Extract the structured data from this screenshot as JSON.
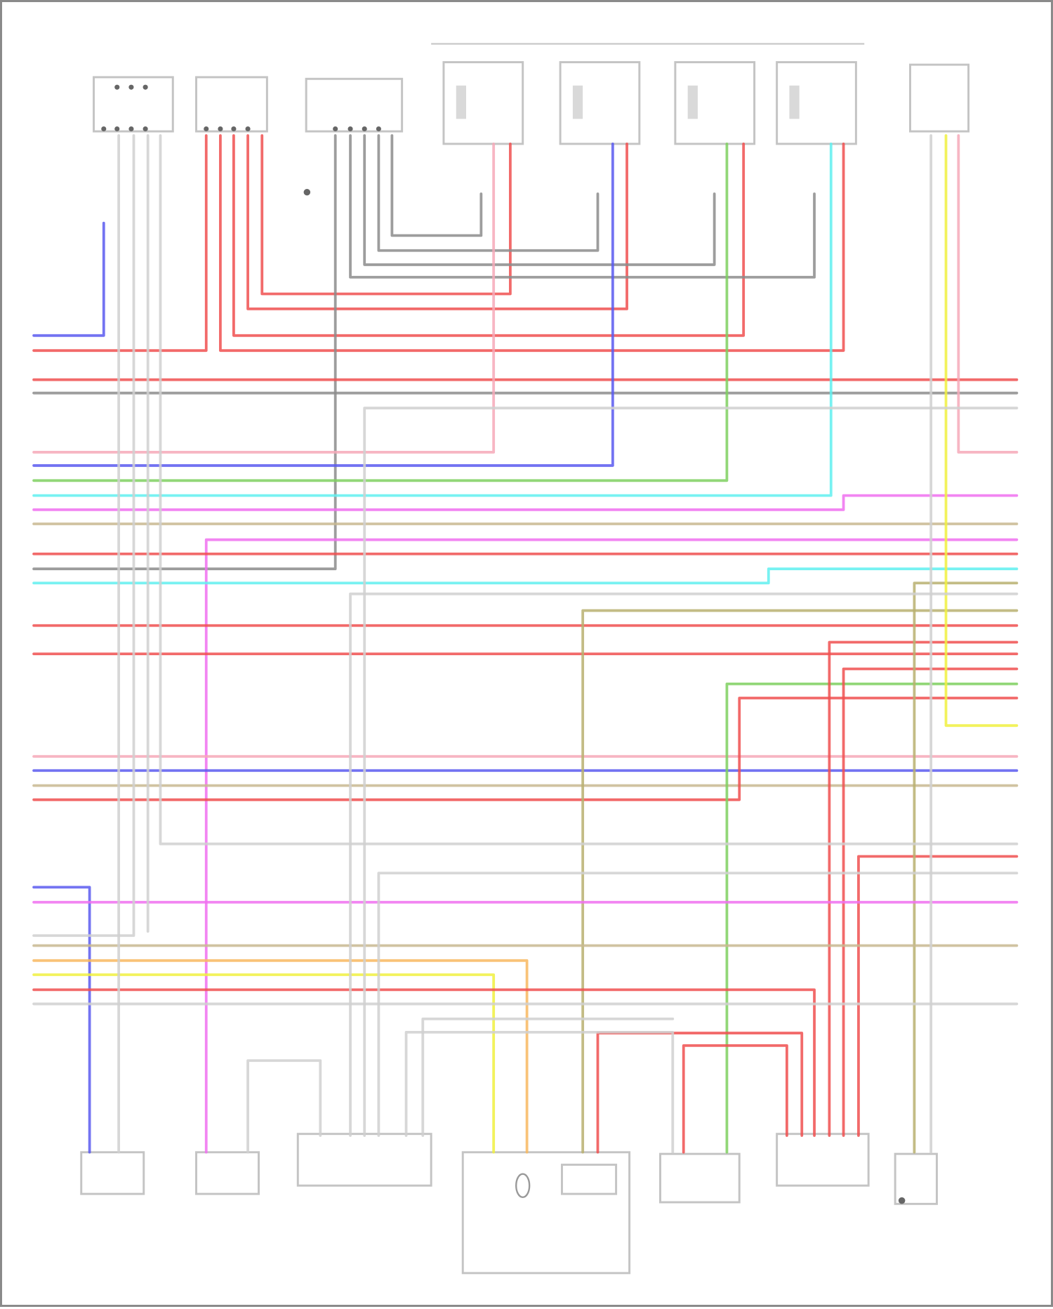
{
  "diagram": {
    "type": "wiring-diagram",
    "wire_colors": {
      "red": "#f05050",
      "pink": "#f6a9b8",
      "blue": "#5a5af0",
      "green": "#7fd060",
      "cyan": "#60f0f0",
      "magenta": "#f070f0",
      "tan": "#c8b890",
      "gray": "#8c8c8c",
      "lightgray": "#d0d0d0",
      "yellow": "#f0f040",
      "orange": "#f8b860",
      "olive": "#b8b070"
    }
  }
}
